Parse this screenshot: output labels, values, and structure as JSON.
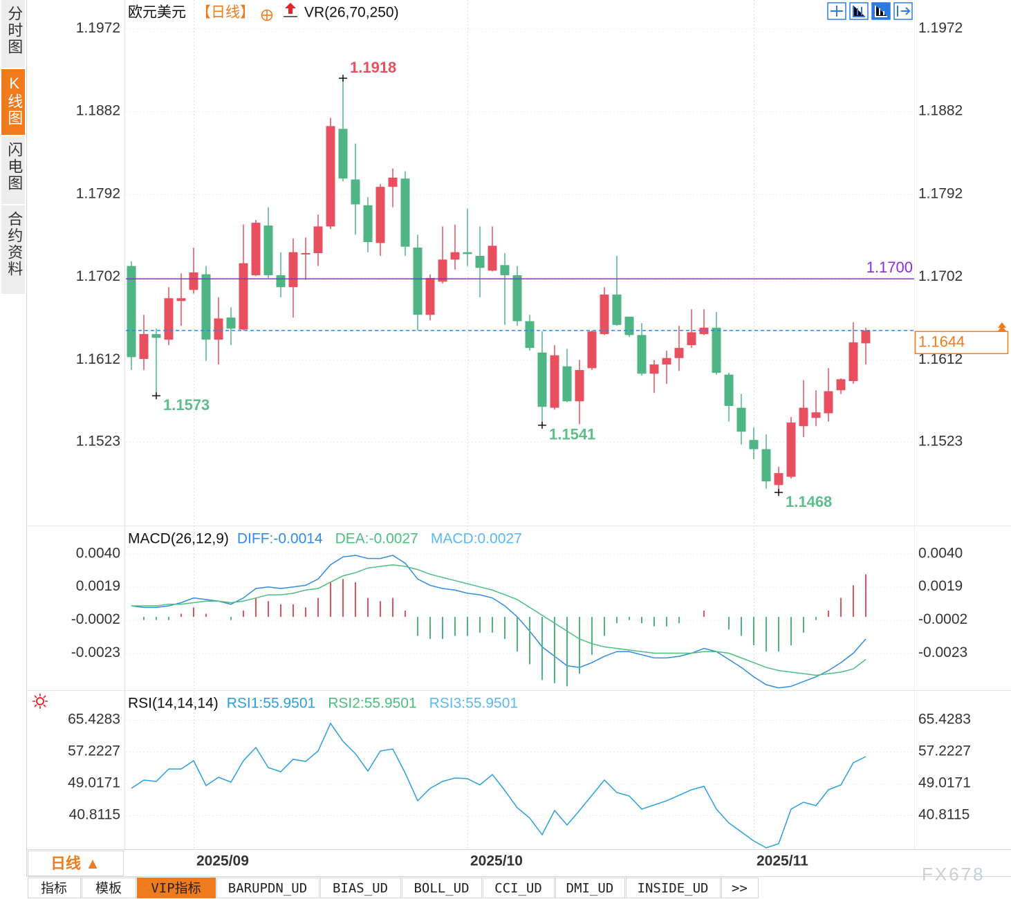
{
  "header": {
    "symbol": "欧元美元",
    "period": "【日线】",
    "indicator": "VR(26,70,250)"
  },
  "sidebar": [
    "分时图",
    "K线图",
    "闪电图",
    "合约资料"
  ],
  "chart_data": [
    {
      "type": "candlestick",
      "categories": [
        null,
        null,
        null,
        null,
        null,
        "2025/09",
        null,
        null,
        null,
        null,
        null,
        null,
        null,
        null,
        null,
        null,
        null,
        null,
        null,
        null,
        null,
        null,
        null,
        null,
        null,
        null,
        null,
        "2025/10",
        null,
        null,
        null,
        null,
        null,
        null,
        null,
        null,
        null,
        null,
        null,
        null,
        null,
        null,
        null,
        null,
        null,
        null,
        null,
        null,
        null,
        null,
        "2025/11",
        null,
        null,
        null,
        null,
        null,
        null,
        null,
        null,
        null
      ],
      "open": [
        1.1714,
        1.1613,
        1.164,
        1.1634,
        1.1676,
        1.1688,
        1.1705,
        1.1634,
        1.1658,
        1.1645,
        1.1704,
        1.1758,
        1.1704,
        1.1691,
        1.1727,
        1.1728,
        1.1757,
        1.1863,
        1.1808,
        1.178,
        1.1739,
        1.18,
        1.1809,
        1.1734,
        1.1661,
        1.1697,
        1.1721,
        1.1729,
        1.1725,
        1.1709,
        1.1715,
        1.1704,
        1.1654,
        1.162,
        1.156,
        1.1605,
        1.1567,
        1.1603,
        1.164,
        1.1683,
        1.1659,
        1.1639,
        1.1597,
        1.1607,
        1.1614,
        1.1628,
        1.164,
        1.1647,
        1.1596,
        1.156,
        1.1525,
        1.1515,
        1.1476,
        1.1485,
        1.154,
        1.1549,
        1.1554,
        1.1579,
        1.1589,
        1.163
      ],
      "high": [
        1.1719,
        1.1661,
        1.1646,
        1.1691,
        1.1706,
        1.1734,
        1.1714,
        1.168,
        1.1669,
        1.1759,
        1.1764,
        1.1778,
        1.1729,
        1.1744,
        1.1745,
        1.177,
        1.1875,
        1.1918,
        1.1847,
        1.1789,
        1.1803,
        1.182,
        1.1817,
        1.1748,
        1.1705,
        1.1757,
        1.1759,
        1.1776,
        1.1757,
        1.1757,
        1.1728,
        1.1714,
        1.1661,
        1.1643,
        1.1628,
        1.1624,
        1.1612,
        1.1644,
        1.1691,
        1.1725,
        1.1659,
        1.1652,
        1.1612,
        1.1622,
        1.1649,
        1.1667,
        1.1667,
        1.1664,
        1.1598,
        1.1575,
        1.1539,
        1.1531,
        1.1496,
        1.155,
        1.159,
        1.1579,
        1.1603,
        1.1592,
        1.1653,
        1.1647
      ],
      "low": [
        1.1601,
        1.1601,
        1.1573,
        1.1628,
        1.1649,
        1.1684,
        1.1611,
        1.1607,
        1.1628,
        1.1644,
        1.1703,
        1.1701,
        1.168,
        1.1658,
        1.1699,
        1.1714,
        1.1754,
        1.1806,
        1.1748,
        1.1729,
        1.1725,
        1.1778,
        1.1725,
        1.1644,
        1.1655,
        1.1695,
        1.171,
        1.1714,
        1.168,
        1.1708,
        1.165,
        1.1649,
        1.1622,
        1.1541,
        1.1558,
        1.1566,
        1.1542,
        1.1601,
        1.1639,
        1.1649,
        1.1637,
        1.1595,
        1.1576,
        1.1586,
        1.16,
        1.1625,
        1.1639,
        1.1596,
        1.1545,
        1.152,
        1.1504,
        1.1472,
        1.1468,
        1.1483,
        1.1528,
        1.154,
        1.1545,
        1.1575,
        1.1586,
        1.1607
      ],
      "close": [
        1.1615,
        1.164,
        1.1636,
        1.1679,
        1.1679,
        1.1707,
        1.1634,
        1.1657,
        1.1646,
        1.1717,
        1.1761,
        1.1704,
        1.1691,
        1.1729,
        1.1728,
        1.1757,
        1.1866,
        1.1809,
        1.1781,
        1.174,
        1.18,
        1.181,
        1.1735,
        1.1661,
        1.1701,
        1.1721,
        1.1729,
        1.1727,
        1.1712,
        1.1736,
        1.1704,
        1.1654,
        1.1625,
        1.1561,
        1.1617,
        1.1567,
        1.1601,
        1.1643,
        1.1683,
        1.165,
        1.1639,
        1.1597,
        1.1607,
        1.1614,
        1.1625,
        1.1642,
        1.1647,
        1.1598,
        1.1562,
        1.1534,
        1.1515,
        1.148,
        1.1489,
        1.1544,
        1.156,
        1.1555,
        1.1578,
        1.1591,
        1.1631,
        1.1644
      ],
      "up_color": "#e8505f",
      "down_color": "#4fb584",
      "ylim": [
        1.1432,
        1.2003
      ],
      "yticks": [
        1.1972,
        1.1882,
        1.1792,
        1.1702,
        1.1612,
        1.1523
      ],
      "reference_lines": [
        {
          "value": 1.17,
          "label": "1.1700",
          "color": "#8b2be2"
        }
      ],
      "last_price": {
        "value": 1.1644,
        "label": "1.1644",
        "color": "#f07b1d"
      },
      "annotations": [
        {
          "value": 1.1918,
          "color": "#e8505f"
        },
        {
          "value": 1.1573,
          "color": "#5cbf8a"
        },
        {
          "value": 1.1541,
          "color": "#5cbf8a"
        },
        {
          "value": 1.1468,
          "color": "#5cbf8a"
        }
      ]
    },
    {
      "type": "macd",
      "title": "MACD(26,12,9)",
      "ylim": [
        -0.0046,
        0.0057
      ],
      "yticks": [
        {
          "value": 0.004,
          "label": "0.0040"
        },
        0.0019,
        -0.0002,
        -0.0023
      ],
      "series": [
        {
          "name": "DIFF:-0.0014",
          "color": "#2f8be6",
          "values": [
            0.0007,
            0.0006,
            0.0006,
            0.0007,
            0.0009,
            0.0012,
            0.0011,
            0.001,
            0.0008,
            0.0012,
            0.0018,
            0.0019,
            0.0018,
            0.0019,
            0.002,
            0.0024,
            0.0033,
            0.0038,
            0.0039,
            0.0037,
            0.0037,
            0.0039,
            0.0034,
            0.0024,
            0.002,
            0.0018,
            0.0017,
            0.0015,
            0.0014,
            0.0012,
            0.0007,
            0,
            -0.0009,
            -0.0019,
            -0.0025,
            -0.0031,
            -0.0032,
            -0.0029,
            -0.0025,
            -0.0022,
            -0.0022,
            -0.0024,
            -0.0026,
            -0.0026,
            -0.0025,
            -0.0023,
            -0.002,
            -0.0022,
            -0.0027,
            -0.0032,
            -0.0038,
            -0.0043,
            -0.0045,
            -0.0044,
            -0.0041,
            -0.0038,
            -0.0034,
            -0.0029,
            -0.0023,
            -0.0014
          ]
        },
        {
          "name": "DEA:-0.0027",
          "color": "#4cbf7e",
          "values": [
            0.0007,
            0.0007,
            0.0007,
            0.0008,
            0.0008,
            0.0009,
            0.001,
            0.001,
            0.0009,
            0.001,
            0.0012,
            0.0014,
            0.0014,
            0.0015,
            0.0017,
            0.0018,
            0.0022,
            0.0026,
            0.0028,
            0.0031,
            0.0032,
            0.0033,
            0.0032,
            0.003,
            0.0027,
            0.0025,
            0.0023,
            0.0021,
            0.0019,
            0.0017,
            0.0014,
            0.0011,
            0.0006,
            0.0001,
            -0.0004,
            -0.0009,
            -0.0014,
            -0.0017,
            -0.0019,
            -0.002,
            -0.0021,
            -0.0022,
            -0.0023,
            -0.0023,
            -0.0023,
            -0.0023,
            -0.0022,
            -0.0022,
            -0.0023,
            -0.0026,
            -0.0029,
            -0.0032,
            -0.0034,
            -0.0035,
            -0.0036,
            -0.0037,
            -0.0036,
            -0.0035,
            -0.0033,
            -0.0027
          ]
        },
        {
          "name": "MACD:0.0027",
          "color": "#5bb8f0",
          "style": "bar",
          "up_color": "#e8505f",
          "down_color": "#4fb584",
          "values": [
            0,
            -0.0002,
            -0.0002,
            -0.0002,
            0.0002,
            0.0006,
            0.0002,
            0,
            -0.0002,
            0.0004,
            0.0012,
            0.001,
            0.0008,
            0.0008,
            0.0006,
            0.0012,
            0.0022,
            0.0024,
            0.0022,
            0.0012,
            0.001,
            0.0012,
            0.0004,
            -0.0012,
            -0.0014,
            -0.0014,
            -0.0012,
            -0.0012,
            -0.001,
            -0.001,
            -0.0014,
            -0.0022,
            -0.003,
            -0.004,
            -0.0042,
            -0.0044,
            -0.0036,
            -0.0024,
            -0.0012,
            -0.0004,
            -0.0002,
            -0.0004,
            -0.0006,
            -0.0006,
            -0.0004,
            0,
            0.0004,
            0,
            -0.0008,
            -0.0012,
            -0.0018,
            -0.0022,
            -0.0022,
            -0.0018,
            -0.001,
            -0.0002,
            0.0004,
            0.0012,
            0.002,
            0.0027
          ]
        }
      ]
    },
    {
      "type": "line",
      "title": "RSI(14,14,14)",
      "ylim": [
        32.07,
        72.74
      ],
      "yticks": [
        65.4283,
        57.2227,
        49.0171,
        40.8115
      ],
      "series": [
        {
          "name": "RSI1:55.9501",
          "color": "#2a9fe0",
          "values": [
            47.77,
            49.91,
            49.55,
            52.76,
            52.76,
            54.9,
            48.48,
            50.62,
            49.37,
            54.9,
            58.29,
            53.12,
            52.05,
            55.26,
            54.72,
            57.4,
            64.53,
            59.9,
            56.69,
            52.23,
            57.4,
            57.93,
            51.69,
            44.56,
            47.77,
            49.55,
            50.44,
            50.26,
            48.66,
            51.33,
            47.23,
            42.77,
            40.1,
            35.82,
            42.06,
            38.31,
            42.06,
            45.98,
            49.91,
            46.7,
            45.8,
            42.41,
            43.49,
            44.56,
            45.98,
            47.41,
            48.3,
            42.41,
            38.85,
            36.53,
            34.21,
            32.43,
            33.5,
            42.41,
            44.2,
            43.31,
            47.41,
            48.66,
            54.37,
            55.9501
          ]
        },
        {
          "name": "RSI2:55.9501",
          "color": "#4cbf7e"
        },
        {
          "name": "RSI3:55.9501",
          "color": "#5bb8f0"
        }
      ]
    }
  ],
  "footer": {
    "period_button": "日线 ▲",
    "tabs": [
      "指标",
      "模板",
      "VIP指标",
      "BARUPDN_UD",
      "BIAS_UD",
      "BOLL_UD",
      "CCI_UD",
      "DMI_UD",
      "INSIDE_UD",
      ">>"
    ],
    "active_tab": "VIP指标",
    "watermark": "FX678"
  }
}
